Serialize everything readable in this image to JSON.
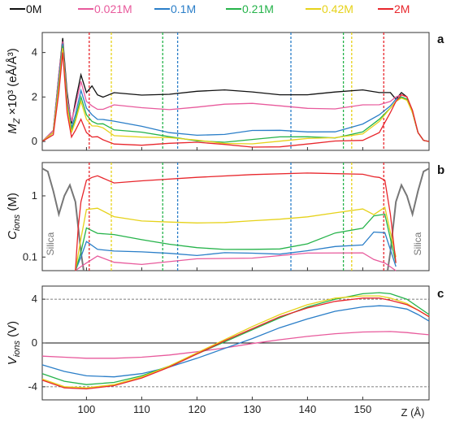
{
  "figure": {
    "series_colors": {
      "0M": "#111111",
      "0.021M": "#e85a9c",
      "0.1M": "#2a7ec8",
      "0.21M": "#25b34a",
      "0.42M": "#f2e11d",
      "2M": "#e8262c"
    },
    "xlabel": "Z (Å)",
    "x_ticks": [
      "100",
      "110",
      "120",
      "130",
      "140",
      "150"
    ]
  },
  "chart_data": [
    {
      "panel": "a",
      "type": "line",
      "ylabel_main": "M",
      "ylabel_sub": "Z",
      "ylabel_rest": " ×10³ (eÅ/Å³)",
      "y_ticks": [
        "0",
        "2",
        "4"
      ],
      "ylim": [
        -0.4,
        4.9
      ],
      "xlim": [
        92,
        162
      ],
      "legend": [
        "0M",
        "0.021M",
        "0.1M",
        "0.21M",
        "0.42M",
        "2M"
      ],
      "series": [
        {
          "name": "0M",
          "x": [
            92,
            94,
            95,
            95.7,
            96.5,
            97.3,
            98,
            99,
            100,
            101,
            102,
            103,
            105,
            110,
            115,
            120,
            125,
            130,
            135,
            140,
            145,
            150,
            153,
            155,
            156,
            157,
            158,
            159,
            160,
            161,
            162
          ],
          "y": [
            0,
            0.5,
            3,
            4.65,
            2.2,
            0.8,
            1.8,
            3.0,
            2.2,
            2.5,
            2.1,
            2.1,
            2.2,
            2.2,
            2.2,
            2.2,
            2.2,
            2.2,
            2.2,
            2.2,
            2.2,
            2.2,
            2.2,
            2.2,
            1.9,
            2.2,
            2.0,
            1.3,
            0.4,
            0.05,
            0
          ]
        },
        {
          "name": "0.021M",
          "x": [
            92,
            94,
            95,
            95.7,
            96.5,
            97.3,
            98,
            99,
            100,
            101,
            102,
            103,
            105,
            110,
            115,
            120,
            125,
            130,
            135,
            140,
            145,
            150,
            153,
            155,
            156,
            157,
            158,
            159,
            160,
            161,
            162
          ],
          "y": [
            0,
            0.5,
            3,
            4.5,
            2.0,
            0.9,
            1.6,
            2.7,
            1.8,
            1.6,
            1.55,
            1.55,
            1.55,
            1.55,
            1.55,
            1.6,
            1.6,
            1.6,
            1.6,
            1.6,
            1.55,
            1.6,
            1.65,
            1.8,
            2.0,
            2.1,
            2.0,
            1.4,
            0.4,
            0.05,
            0
          ]
        },
        {
          "name": "0.1M",
          "x": [
            92,
            94,
            95,
            95.7,
            96.5,
            97.3,
            98,
            99,
            100,
            101,
            102,
            103,
            105,
            110,
            115,
            120,
            125,
            130,
            135,
            140,
            145,
            150,
            153,
            155,
            156,
            157,
            158,
            159,
            160,
            161,
            162
          ],
          "y": [
            0,
            0.4,
            2.8,
            4.4,
            1.8,
            0.6,
            1.2,
            2.3,
            1.5,
            1.2,
            1.1,
            1.0,
            0.8,
            0.6,
            0.45,
            0.4,
            0.35,
            0.4,
            0.4,
            0.45,
            0.55,
            0.85,
            1.2,
            1.6,
            1.9,
            2.0,
            1.9,
            1.3,
            0.4,
            0.05,
            0
          ]
        },
        {
          "name": "0.21M",
          "x": [
            92,
            94,
            95,
            95.7,
            96.5,
            97.3,
            98,
            99,
            100,
            101,
            102,
            103,
            105,
            110,
            115,
            120,
            125,
            130,
            135,
            140,
            145,
            150,
            153,
            155,
            156,
            157,
            158,
            159,
            160,
            161,
            162
          ],
          "y": [
            0,
            0.4,
            2.6,
            4.3,
            1.7,
            0.5,
            1.0,
            2.0,
            1.2,
            0.9,
            0.8,
            0.7,
            0.5,
            0.3,
            0.15,
            0.1,
            0.08,
            0.1,
            0.1,
            0.12,
            0.2,
            0.55,
            1.0,
            1.5,
            1.8,
            2.0,
            1.9,
            1.3,
            0.4,
            0.05,
            0
          ]
        },
        {
          "name": "0.42M",
          "x": [
            92,
            94,
            95,
            95.7,
            96.5,
            97.3,
            98,
            99,
            100,
            101,
            102,
            103,
            105,
            110,
            115,
            120,
            125,
            130,
            135,
            140,
            145,
            150,
            153,
            155,
            156,
            157,
            158,
            159,
            160,
            161,
            162
          ],
          "y": [
            0,
            0.4,
            2.5,
            4.2,
            1.6,
            0.4,
            0.9,
            1.8,
            1.0,
            0.7,
            0.6,
            0.5,
            0.35,
            0.15,
            0.05,
            0.02,
            0.0,
            0.0,
            0.0,
            0.02,
            0.1,
            0.4,
            0.9,
            1.5,
            1.8,
            1.95,
            1.85,
            1.3,
            0.4,
            0.05,
            0
          ]
        },
        {
          "name": "2M",
          "x": [
            92,
            94,
            95,
            95.7,
            96.5,
            97.3,
            98,
            99,
            100,
            101,
            102,
            103,
            105,
            110,
            115,
            120,
            125,
            130,
            135,
            140,
            145,
            150,
            153,
            155,
            156,
            157,
            158,
            159,
            160,
            161,
            162
          ],
          "y": [
            0,
            0.3,
            2.2,
            4.0,
            1.3,
            0.2,
            0.5,
            1.0,
            0.4,
            0.2,
            0.1,
            0.05,
            0.0,
            -0.1,
            -0.15,
            -0.15,
            -0.15,
            -0.15,
            -0.15,
            -0.15,
            -0.1,
            0.0,
            0.4,
            1.3,
            1.8,
            2.1,
            2.0,
            1.4,
            0.4,
            0.05,
            0
          ]
        }
      ],
      "vlines": [
        {
          "name": "2M",
          "x": [
            100.5,
            153.8
          ]
        },
        {
          "name": "0.42M",
          "x": [
            104.5,
            148.0
          ]
        },
        {
          "name": "0.21M",
          "x": [
            113.8,
            146.5
          ]
        },
        {
          "name": "0.1M",
          "x": [
            116.5,
            137.0
          ]
        }
      ]
    },
    {
      "panel": "b",
      "type": "line",
      "yscale": "log",
      "ylabel_main": "C",
      "ylabel_sub": "ions",
      "ylabel_rest": " (M)",
      "y_ticks": [
        "0.1",
        "1"
      ],
      "ylim": [
        0.06,
        3.5
      ],
      "xlim": [
        92,
        162
      ],
      "annotations": [
        "Silica",
        "Silica"
      ],
      "series": [
        {
          "name": "0M",
          "x": [
            92,
            93,
            94,
            95,
            96,
            97,
            98,
            99,
            99.5
          ],
          "y": [
            2.8,
            2.5,
            1.2,
            0.5,
            1.0,
            1.5,
            0.8,
            0.12,
            0.06
          ]
        },
        {
          "name": "0M",
          "x": [
            154.5,
            155,
            156,
            157,
            158,
            159,
            160,
            161,
            162
          ],
          "y": [
            0.06,
            0.12,
            0.8,
            1.5,
            1.0,
            0.5,
            1.2,
            2.5,
            2.8
          ]
        },
        {
          "name": "0.021M",
          "x": [
            98,
            99,
            100,
            102,
            105,
            110,
            120,
            130,
            140,
            150,
            152,
            154,
            156
          ],
          "y": [
            0.06,
            0.07,
            0.08,
            0.09,
            0.1,
            0.09,
            0.1,
            0.09,
            0.1,
            0.1,
            0.1,
            0.08,
            0.06
          ]
        },
        {
          "name": "0.1M",
          "x": [
            98,
            99,
            100,
            102,
            105,
            110,
            115,
            120,
            125,
            130,
            135,
            140,
            145,
            150,
            152,
            154,
            156
          ],
          "y": [
            0.06,
            0.1,
            0.18,
            0.15,
            0.12,
            0.11,
            0.1,
            0.09,
            0.1,
            0.1,
            0.1,
            0.12,
            0.15,
            0.17,
            0.22,
            0.25,
            0.07
          ]
        },
        {
          "name": "0.21M",
          "x": [
            98,
            99,
            100,
            102,
            105,
            110,
            115,
            120,
            125,
            130,
            135,
            140,
            145,
            150,
            152,
            154,
            156
          ],
          "y": [
            0.06,
            0.12,
            0.3,
            0.28,
            0.2,
            0.17,
            0.15,
            0.14,
            0.14,
            0.15,
            0.16,
            0.2,
            0.3,
            0.35,
            0.45,
            0.5,
            0.08
          ]
        },
        {
          "name": "0.42M",
          "x": [
            98,
            99,
            100,
            102,
            105,
            110,
            115,
            120,
            125,
            130,
            135,
            140,
            145,
            150,
            152,
            154,
            156
          ],
          "y": [
            0.06,
            0.2,
            0.6,
            0.55,
            0.5,
            0.45,
            0.45,
            0.44,
            0.44,
            0.45,
            0.45,
            0.46,
            0.5,
            0.55,
            0.6,
            0.65,
            0.1
          ]
        },
        {
          "name": "2M",
          "x": [
            98,
            98.5,
            99,
            100,
            101,
            102,
            105,
            110,
            120,
            130,
            140,
            150,
            152,
            153,
            154,
            155,
            156
          ],
          "y": [
            0.06,
            0.3,
            0.8,
            1.8,
            2.0,
            1.95,
            1.9,
            1.95,
            1.95,
            1.95,
            2.0,
            2.0,
            2.05,
            2.0,
            1.8,
            0.5,
            0.08
          ]
        }
      ],
      "vlines": [
        {
          "name": "2M",
          "x": [
            100.5,
            153.8
          ]
        },
        {
          "name": "0.42M",
          "x": [
            104.5,
            148.0
          ]
        },
        {
          "name": "0.21M",
          "x": [
            113.8,
            146.5
          ]
        },
        {
          "name": "0.1M",
          "x": [
            116.5,
            137.0
          ]
        }
      ]
    },
    {
      "panel": "c",
      "type": "line",
      "ylabel_main": "V",
      "ylabel_sub": "ions",
      "ylabel_rest": " (V)",
      "y_ticks": [
        "-4",
        "0",
        "4"
      ],
      "ylim": [
        -5.2,
        5.2
      ],
      "xlim": [
        92,
        162
      ],
      "hlines": [
        4,
        0,
        -4
      ],
      "series": [
        {
          "name": "0.021M",
          "x": [
            92,
            96,
            100,
            105,
            110,
            115,
            120,
            125,
            130,
            135,
            140,
            145,
            150,
            155,
            158,
            160,
            162
          ],
          "y": [
            -1.2,
            -1.3,
            -1.4,
            -1.4,
            -1.3,
            -1.1,
            -0.8,
            -0.45,
            -0.05,
            0.3,
            0.6,
            0.85,
            1.0,
            1.05,
            0.95,
            0.85,
            0.75
          ]
        },
        {
          "name": "0.1M",
          "x": [
            92,
            96,
            100,
            105,
            110,
            115,
            120,
            125,
            130,
            135,
            140,
            145,
            150,
            153,
            155,
            158,
            160,
            162
          ],
          "y": [
            -2.0,
            -2.6,
            -3.0,
            -3.1,
            -2.8,
            -2.2,
            -1.4,
            -0.5,
            0.4,
            1.4,
            2.2,
            2.9,
            3.3,
            3.4,
            3.35,
            3.1,
            2.6,
            2.0
          ]
        },
        {
          "name": "0.21M",
          "x": [
            92,
            96,
            100,
            105,
            110,
            115,
            120,
            125,
            130,
            135,
            140,
            145,
            150,
            153,
            155,
            158,
            160,
            162
          ],
          "y": [
            -2.8,
            -3.5,
            -3.8,
            -3.6,
            -3.0,
            -2.1,
            -1.0,
            0.1,
            1.2,
            2.3,
            3.3,
            4.0,
            4.5,
            4.6,
            4.5,
            4.0,
            3.3,
            2.6
          ]
        },
        {
          "name": "0.42M",
          "x": [
            92,
            96,
            100,
            105,
            110,
            115,
            120,
            125,
            130,
            135,
            140,
            145,
            150,
            153,
            155,
            158,
            160,
            162
          ],
          "y": [
            -3.3,
            -4.0,
            -4.1,
            -3.8,
            -3.1,
            -2.1,
            -0.9,
            0.3,
            1.5,
            2.6,
            3.5,
            4.1,
            4.3,
            4.3,
            4.1,
            3.6,
            3.0,
            2.4
          ]
        },
        {
          "name": "2M",
          "x": [
            92,
            96,
            100,
            105,
            110,
            115,
            120,
            125,
            130,
            135,
            140,
            145,
            150,
            153,
            155,
            158,
            160,
            162
          ],
          "y": [
            -3.4,
            -4.1,
            -4.2,
            -3.9,
            -3.2,
            -2.2,
            -1.0,
            0.2,
            1.3,
            2.4,
            3.2,
            3.8,
            4.1,
            4.1,
            3.9,
            3.5,
            3.0,
            2.4
          ]
        }
      ]
    }
  ]
}
